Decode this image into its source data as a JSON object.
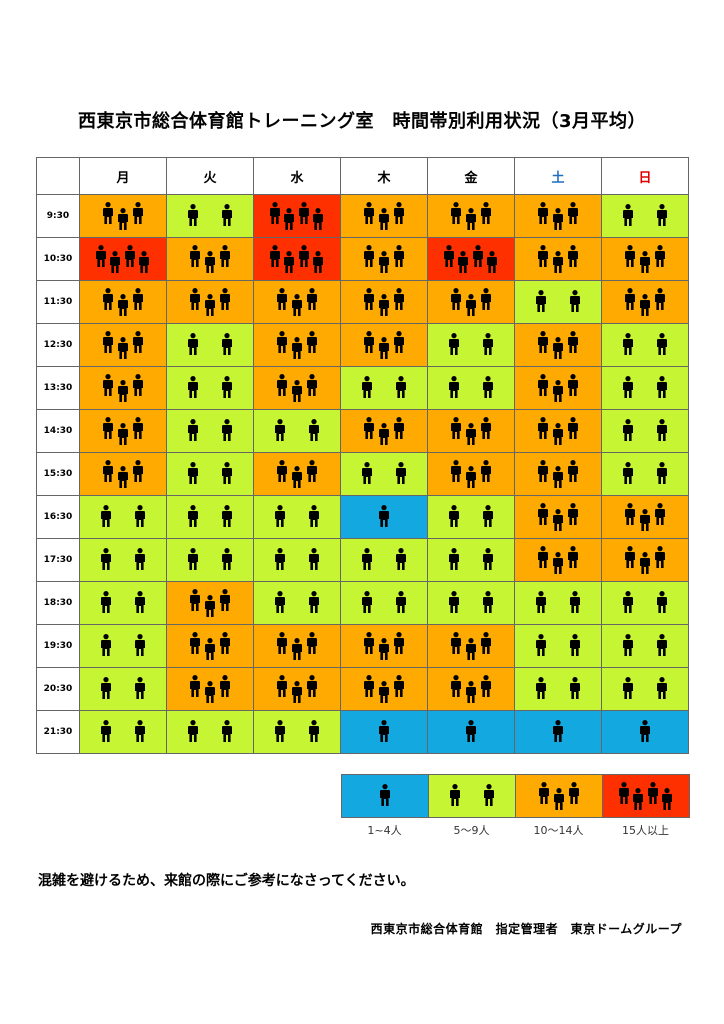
{
  "title": "西東京市総合体育館トレーニング室　時間帯別利用状況（3月平均）",
  "days": [
    "月",
    "火",
    "水",
    "木",
    "金",
    "土",
    "日"
  ],
  "colors": {
    "1": "#14a8e0",
    "2": "#c6f533",
    "3": "#ffaa00",
    "4": "#ff3000"
  },
  "rows": [
    {
      "time": "9:30",
      "levels": [
        3,
        2,
        4,
        3,
        3,
        3,
        2
      ]
    },
    {
      "time": "10:30",
      "levels": [
        4,
        3,
        4,
        3,
        4,
        3,
        3
      ]
    },
    {
      "time": "11:30",
      "levels": [
        3,
        3,
        3,
        3,
        3,
        2,
        3
      ]
    },
    {
      "time": "12:30",
      "levels": [
        3,
        2,
        3,
        3,
        2,
        3,
        2
      ]
    },
    {
      "time": "13:30",
      "levels": [
        3,
        2,
        3,
        2,
        2,
        3,
        2
      ]
    },
    {
      "time": "14:30",
      "levels": [
        3,
        2,
        2,
        3,
        3,
        3,
        2
      ]
    },
    {
      "time": "15:30",
      "levels": [
        3,
        2,
        3,
        2,
        3,
        3,
        2
      ]
    },
    {
      "time": "16:30",
      "levels": [
        2,
        2,
        2,
        1,
        2,
        3,
        3
      ]
    },
    {
      "time": "17:30",
      "levels": [
        2,
        2,
        2,
        2,
        2,
        3,
        3
      ]
    },
    {
      "time": "18:30",
      "levels": [
        2,
        3,
        2,
        2,
        2,
        2,
        2
      ]
    },
    {
      "time": "19:30",
      "levels": [
        2,
        3,
        3,
        3,
        3,
        2,
        2
      ]
    },
    {
      "time": "20:30",
      "levels": [
        2,
        3,
        3,
        3,
        3,
        2,
        2
      ]
    },
    {
      "time": "21:30",
      "levels": [
        2,
        2,
        2,
        1,
        1,
        1,
        1
      ]
    }
  ],
  "legend": [
    {
      "level": 1,
      "label": "1~4人"
    },
    {
      "level": 2,
      "label": "5〜9人"
    },
    {
      "level": 3,
      "label": "10〜14人"
    },
    {
      "level": 4,
      "label": "15人以上"
    }
  ],
  "note": "混雑を避けるため、来館の際にご参考になさってください。",
  "footer": "西東京市総合体育館　指定管理者　東京ドームグループ",
  "icon": "person-icon"
}
